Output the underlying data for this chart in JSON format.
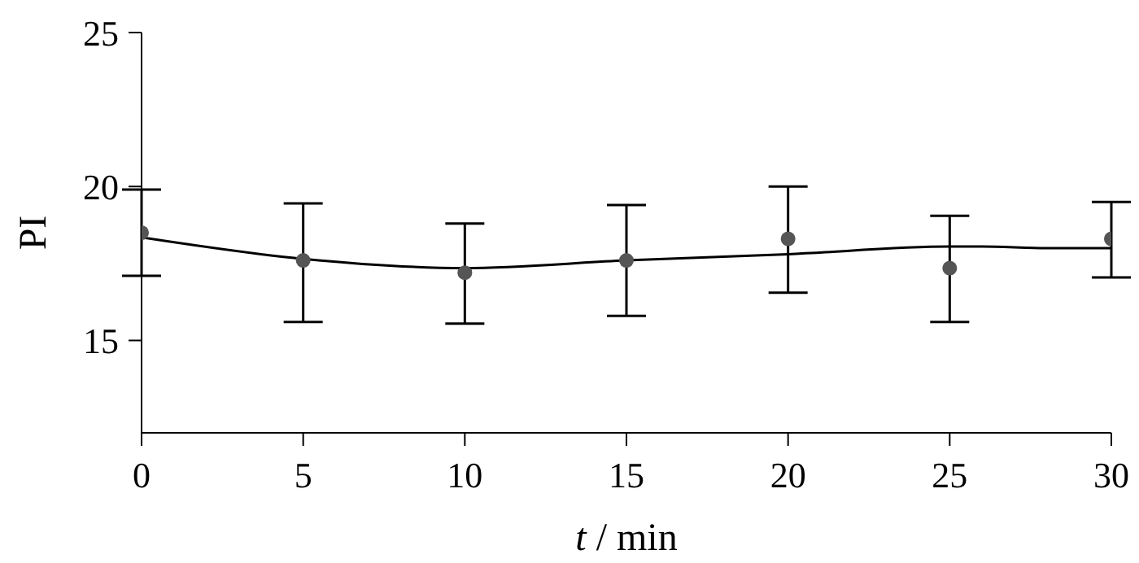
{
  "chart_data": {
    "type": "scatter",
    "xlabel": "t / min",
    "ylabel": "PI",
    "xlim": [
      0,
      30
    ],
    "xticks": [
      0,
      5,
      10,
      15,
      20,
      25,
      30
    ],
    "ylim": [
      12,
      25
    ],
    "yticks": [
      15,
      20,
      25
    ],
    "marker": "circle",
    "x": [
      0,
      5,
      10,
      15,
      20,
      25,
      30
    ],
    "series": [
      {
        "color": "#555555",
        "values": [
          18.5,
          17.6,
          17.2,
          17.6,
          18.3,
          17.35,
          18.3
        ],
        "errors": [
          [
            17.1,
            19.9
          ],
          [
            15.6,
            19.45
          ],
          [
            15.55,
            18.8
          ],
          [
            15.8,
            19.4
          ],
          [
            16.55,
            20.0
          ],
          [
            15.6,
            19.05
          ],
          [
            17.05,
            19.5
          ]
        ]
      },
      {
        "type": "line",
        "color": "#000000",
        "marker": "none",
        "line_style": "solid",
        "x": [
          0,
          5,
          10,
          15,
          20,
          25,
          26,
          28,
          30
        ],
        "values": [
          18.35,
          17.65,
          17.35,
          17.6,
          17.8,
          18.05,
          18.05,
          18.0,
          18.0
        ]
      }
    ]
  }
}
